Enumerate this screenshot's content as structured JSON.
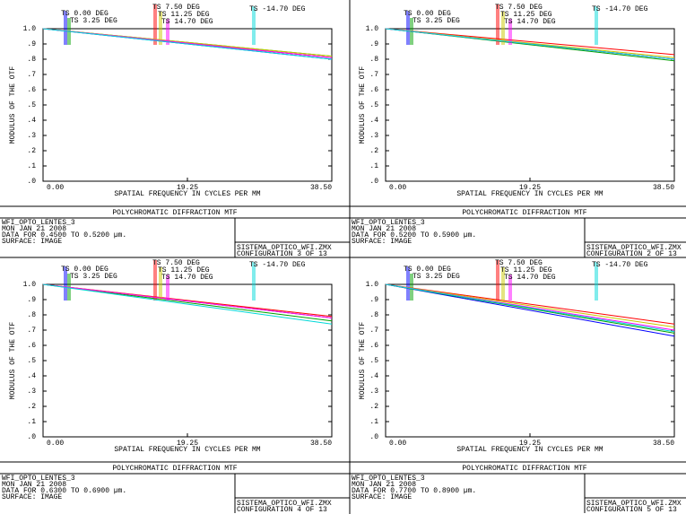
{
  "chart_data": [
    {
      "type": "line",
      "title": "POLYCHROMATIC DIFFRACTION MTF",
      "xlabel": "SPATIAL FREQUENCY IN CYCLES PER MM",
      "ylabel": "MODULUS OF THE OTF",
      "x": [
        0,
        38.5
      ],
      "xlim": [
        0,
        38.5
      ],
      "ylim": [
        0,
        1
      ],
      "xticks": [
        {
          "value": 0,
          "label": "0.00"
        },
        {
          "value": 19.25,
          "label": "19.25"
        },
        {
          "value": 38.5,
          "label": "38.50"
        }
      ],
      "yticks": [
        {
          "value": 0,
          "label": ".0"
        },
        {
          "value": 0.1,
          "label": ".1"
        },
        {
          "value": 0.2,
          "label": ".2"
        },
        {
          "value": 0.3,
          "label": ".3"
        },
        {
          "value": 0.4,
          "label": ".4"
        },
        {
          "value": 0.5,
          "label": ".5"
        },
        {
          "value": 0.6,
          "label": ".6"
        },
        {
          "value": 0.7,
          "label": ".7"
        },
        {
          "value": 0.8,
          "label": ".8"
        },
        {
          "value": 0.9,
          "label": ".9"
        },
        {
          "value": 1,
          "label": "1.0"
        }
      ],
      "series": [
        {
          "name": "TS 0.00 DEG",
          "color": "#0000ff",
          "values": [
            1.0,
            0.8
          ]
        },
        {
          "name": "TS 3.25 DEG",
          "color": "#00a000",
          "values": [
            1.0,
            0.82
          ]
        },
        {
          "name": "TS 7.50 DEG",
          "color": "#ff0000",
          "values": [
            1.0,
            0.81
          ]
        },
        {
          "name": "TS 11.25 DEG",
          "color": "#c8c800",
          "values": [
            1.0,
            0.82
          ]
        },
        {
          "name": "TS 14.70 DEG",
          "color": "#ff00ff",
          "values": [
            1.0,
            0.81
          ]
        },
        {
          "name": "TS -14.70 DEG",
          "color": "#00d8d8",
          "values": [
            1.0,
            0.8
          ]
        }
      ],
      "notes": [
        "WFI_OPTO_LENTES_3",
        "MON JAN 21 2008",
        "DATA FOR 0.4500 TO 0.5200 µm.",
        "SURFACE: IMAGE"
      ],
      "file": "SISTEMA_OPTICO_WFI.ZMX",
      "configuration": "CONFIGURATION 3 OF 13"
    },
    {
      "type": "line",
      "title": "POLYCHROMATIC DIFFRACTION MTF",
      "xlabel": "SPATIAL FREQUENCY IN CYCLES PER MM",
      "ylabel": "MODULUS OF THE OTF",
      "x": [
        0,
        38.5
      ],
      "xlim": [
        0,
        38.5
      ],
      "ylim": [
        0,
        1
      ],
      "xticks": [
        {
          "value": 0,
          "label": "0.00"
        },
        {
          "value": 19.25,
          "label": "19.25"
        },
        {
          "value": 38.5,
          "label": "38.50"
        }
      ],
      "yticks": [
        {
          "value": 0,
          "label": ".0"
        },
        {
          "value": 0.1,
          "label": ".1"
        },
        {
          "value": 0.2,
          "label": ".2"
        },
        {
          "value": 0.3,
          "label": ".3"
        },
        {
          "value": 0.4,
          "label": ".4"
        },
        {
          "value": 0.5,
          "label": ".5"
        },
        {
          "value": 0.6,
          "label": ".6"
        },
        {
          "value": 0.7,
          "label": ".7"
        },
        {
          "value": 0.8,
          "label": ".8"
        },
        {
          "value": 0.9,
          "label": ".9"
        },
        {
          "value": 1,
          "label": "1.0"
        }
      ],
      "series": [
        {
          "name": "TS 0.00 DEG",
          "color": "#0000ff",
          "values": [
            1.0,
            0.8
          ]
        },
        {
          "name": "TS 3.25 DEG",
          "color": "#00a000",
          "values": [
            1.0,
            0.79
          ]
        },
        {
          "name": "TS 7.50 DEG",
          "color": "#ff0000",
          "values": [
            1.0,
            0.83
          ]
        },
        {
          "name": "TS 11.25 DEG",
          "color": "#c8c800",
          "values": [
            1.0,
            0.81
          ]
        },
        {
          "name": "TS 14.70 DEG",
          "color": "#ff00ff",
          "values": [
            1.0,
            0.8
          ]
        },
        {
          "name": "TS -14.70 DEG",
          "color": "#00d8d8",
          "values": [
            1.0,
            0.8
          ]
        }
      ],
      "notes": [
        "WFI_OPTO_LENTES_3",
        "MON JAN 21 2008",
        "DATA FOR 0.5200 TO 0.5900 µm.",
        "SURFACE: IMAGE"
      ],
      "file": "SISTEMA_OPTICO_WFI.ZMX",
      "configuration": "CONFIGURATION 2 OF 13"
    },
    {
      "type": "line",
      "title": "POLYCHROMATIC DIFFRACTION MTF",
      "xlabel": "SPATIAL FREQUENCY IN CYCLES PER MM",
      "ylabel": "MODULUS OF THE OTF",
      "x": [
        0,
        38.5
      ],
      "xlim": [
        0,
        38.5
      ],
      "ylim": [
        0,
        1
      ],
      "xticks": [
        {
          "value": 0,
          "label": "0.00"
        },
        {
          "value": 19.25,
          "label": "19.25"
        },
        {
          "value": 38.5,
          "label": "38.50"
        }
      ],
      "yticks": [
        {
          "value": 0,
          "label": ".0"
        },
        {
          "value": 0.1,
          "label": ".1"
        },
        {
          "value": 0.2,
          "label": ".2"
        },
        {
          "value": 0.3,
          "label": ".3"
        },
        {
          "value": 0.4,
          "label": ".4"
        },
        {
          "value": 0.5,
          "label": ".5"
        },
        {
          "value": 0.6,
          "label": ".6"
        },
        {
          "value": 0.7,
          "label": ".7"
        },
        {
          "value": 0.8,
          "label": ".8"
        },
        {
          "value": 0.9,
          "label": ".9"
        },
        {
          "value": 1,
          "label": "1.0"
        }
      ],
      "series": [
        {
          "name": "TS 0.00 DEG",
          "color": "#0000ff",
          "values": [
            1.0,
            0.78
          ]
        },
        {
          "name": "TS 3.25 DEG",
          "color": "#00a000",
          "values": [
            1.0,
            0.76
          ]
        },
        {
          "name": "TS 7.50 DEG",
          "color": "#ff0000",
          "values": [
            1.0,
            0.79
          ]
        },
        {
          "name": "TS 11.25 DEG",
          "color": "#c8c800",
          "values": [
            1.0,
            0.78
          ]
        },
        {
          "name": "TS 14.70 DEG",
          "color": "#ff00ff",
          "values": [
            1.0,
            0.78
          ]
        },
        {
          "name": "TS -14.70 DEG",
          "color": "#00d8d8",
          "values": [
            1.0,
            0.74
          ]
        }
      ],
      "notes": [
        "WFI_OPTO_LENTES_3",
        "MON JAN 21 2008",
        "DATA FOR 0.6300 TO 0.6900 µm.",
        "SURFACE: IMAGE"
      ],
      "file": "SISTEMA_OPTICO_WFI.ZMX",
      "configuration": "CONFIGURATION 4 OF 13"
    },
    {
      "type": "line",
      "title": "POLYCHROMATIC DIFFRACTION MTF",
      "xlabel": "SPATIAL FREQUENCY IN CYCLES PER MM",
      "ylabel": "MODULUS OF THE OTF",
      "x": [
        0,
        38.5
      ],
      "xlim": [
        0,
        38.5
      ],
      "ylim": [
        0,
        1
      ],
      "xticks": [
        {
          "value": 0,
          "label": "0.00"
        },
        {
          "value": 19.25,
          "label": "19.25"
        },
        {
          "value": 38.5,
          "label": "38.50"
        }
      ],
      "yticks": [
        {
          "value": 0,
          "label": ".0"
        },
        {
          "value": 0.1,
          "label": ".1"
        },
        {
          "value": 0.2,
          "label": ".2"
        },
        {
          "value": 0.3,
          "label": ".3"
        },
        {
          "value": 0.4,
          "label": ".4"
        },
        {
          "value": 0.5,
          "label": ".5"
        },
        {
          "value": 0.6,
          "label": ".6"
        },
        {
          "value": 0.7,
          "label": ".7"
        },
        {
          "value": 0.8,
          "label": ".8"
        },
        {
          "value": 0.9,
          "label": ".9"
        },
        {
          "value": 1,
          "label": "1.0"
        }
      ],
      "series": [
        {
          "name": "TS 0.00 DEG",
          "color": "#0000ff",
          "values": [
            1.0,
            0.66
          ]
        },
        {
          "name": "TS 3.25 DEG",
          "color": "#00a000",
          "values": [
            1.0,
            0.68
          ]
        },
        {
          "name": "TS 7.50 DEG",
          "color": "#ff0000",
          "values": [
            1.0,
            0.74
          ]
        },
        {
          "name": "TS 11.25 DEG",
          "color": "#c8c800",
          "values": [
            1.0,
            0.72
          ]
        },
        {
          "name": "TS 14.70 DEG",
          "color": "#ff00ff",
          "values": [
            1.0,
            0.7
          ]
        },
        {
          "name": "TS -14.70 DEG",
          "color": "#00d8d8",
          "values": [
            1.0,
            0.69
          ]
        }
      ],
      "notes": [
        "WFI_OPTO_LENTES_3",
        "MON JAN 21 2008",
        "DATA FOR 0.7700 TO 0.8900 µm.",
        "SURFACE: IMAGE"
      ],
      "file": "SISTEMA_OPTICO_WFI.ZMX",
      "configuration": "CONFIGURATION 5 OF 13"
    }
  ]
}
